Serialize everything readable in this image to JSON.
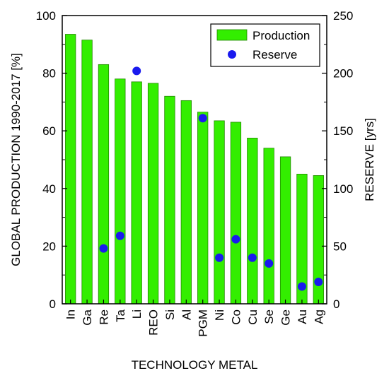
{
  "chart_data": {
    "type": "bar",
    "xlabel": "TECHNOLOGY METAL",
    "ylabel_left": "GLOBAL PRODUCTION 1990-2017 [%]",
    "ylabel_right": "RESERVE [yrs]",
    "ylim_left": [
      0,
      100
    ],
    "ylim_right": [
      0,
      250
    ],
    "yticks_left": [
      "0",
      "20",
      "40",
      "60",
      "80",
      "100"
    ],
    "yticks_right": [
      "0",
      "50",
      "100",
      "150",
      "200",
      "250"
    ],
    "categories": [
      "In",
      "Ga",
      "Re",
      "Ta",
      "Li",
      "REO",
      "Si",
      "Al",
      "PGM",
      "Ni",
      "Co",
      "Cu",
      "Se",
      "Ge",
      "Au",
      "Ag"
    ],
    "legend": {
      "position": "top-right"
    },
    "series": [
      {
        "name": "Production",
        "kind": "bar",
        "axis": "left",
        "color": "#33ee00",
        "edge_color": "#228800",
        "values": [
          93.5,
          91.5,
          83,
          78,
          77,
          76.5,
          72,
          70.5,
          66.5,
          63.5,
          63,
          57.5,
          54,
          51,
          45,
          44.5
        ]
      },
      {
        "name": "Reserve",
        "kind": "scatter",
        "axis": "right",
        "color": "#1a1aee",
        "values": [
          null,
          null,
          48,
          59,
          202,
          null,
          null,
          null,
          161,
          40,
          56,
          40,
          35,
          null,
          15,
          19
        ]
      }
    ]
  }
}
